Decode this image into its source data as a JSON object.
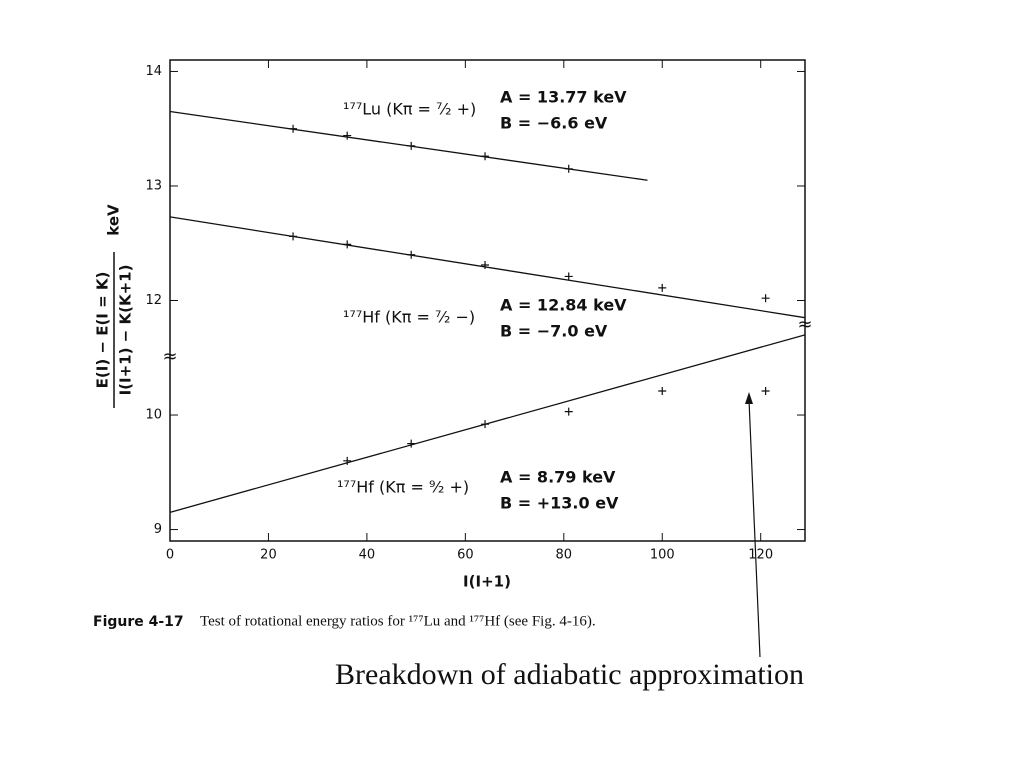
{
  "chart_data": {
    "type": "scatter",
    "x_label": "I(I+1)",
    "y_label_numerator": "E(I) − E(I = K)",
    "y_label_denominator": "I(I+1) − K(K+1)",
    "y_label_unit": "keV",
    "xlim": [
      0,
      129
    ],
    "xticks": [
      0,
      20,
      40,
      60,
      80,
      100,
      120
    ],
    "ylim": [
      8.9,
      14.1
    ],
    "y_break": [
      10.5,
      11.5
    ],
    "yticks": [
      9,
      10,
      12,
      13,
      14
    ],
    "series": [
      {
        "name": "¹⁷⁷Lu (Kπ = ⁷⁄₂ +)",
        "params": [
          "A = 13.77 keV",
          "B = −6.6 eV"
        ],
        "color": "#111",
        "x": [
          25,
          36,
          49,
          64,
          81
        ],
        "values": [
          13.5,
          13.44,
          13.35,
          13.26,
          13.15
        ],
        "fit": {
          "x": [
            0,
            97
          ],
          "y": [
            13.65,
            13.05
          ]
        }
      },
      {
        "name": "¹⁷⁷Hf (Kπ = ⁷⁄₂ −)",
        "params": [
          "A = 12.84 keV",
          "B = −7.0 eV"
        ],
        "color": "#111",
        "x": [
          25,
          36,
          49,
          64,
          81,
          100,
          121
        ],
        "values": [
          12.56,
          12.49,
          12.4,
          12.31,
          12.21,
          12.11,
          12.02
        ],
        "fit": {
          "x": [
            0,
            129
          ],
          "y": [
            12.73,
            11.85
          ]
        }
      },
      {
        "name": "¹⁷⁷Hf (Kπ = ⁹⁄₂ +)",
        "params": [
          "A = 8.79 keV",
          "B = +13.0 eV"
        ],
        "color": "#111",
        "x": [
          36,
          49,
          64,
          81,
          100,
          121
        ],
        "values": [
          9.6,
          9.75,
          9.92,
          10.03,
          10.21,
          10.21
        ],
        "fit": {
          "x": [
            0,
            129
          ],
          "y": [
            9.15,
            10.7
          ]
        }
      }
    ],
    "caption_label": "Figure 4-17",
    "caption": "Test of rotational energy ratios for ¹⁷⁷Lu and ¹⁷⁷Hf (see Fig. 4-16).",
    "annotation": "Breakdown of adiabatic approximation"
  }
}
